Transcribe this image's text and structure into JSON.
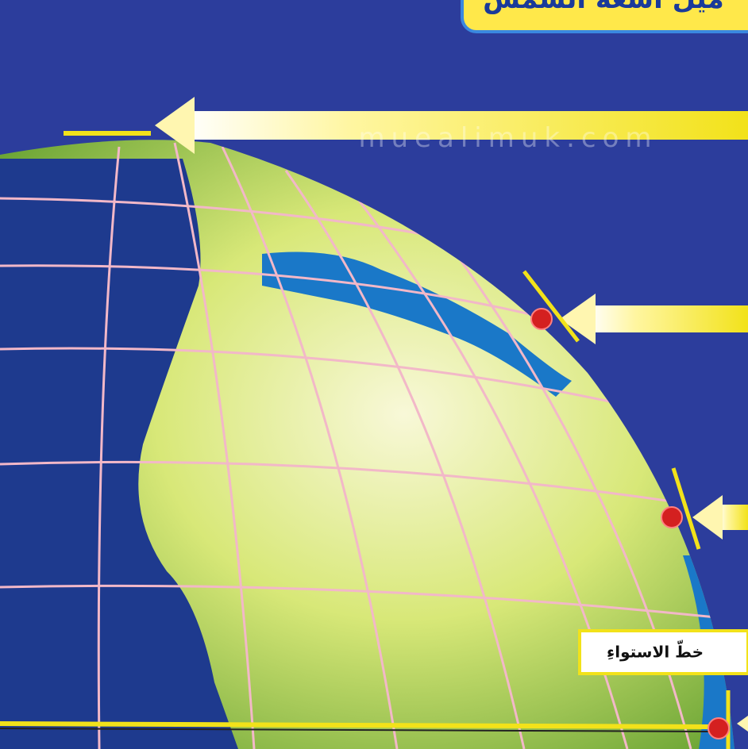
{
  "title": "ميل أشعة الشمس",
  "watermark": "muealimuk.com",
  "equator_label": "خطّ الاستواءِ"
}
